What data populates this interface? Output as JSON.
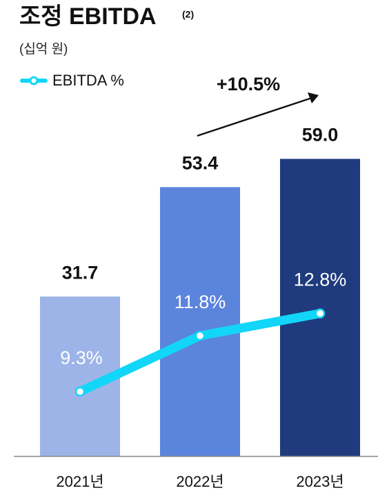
{
  "chart_data": {
    "type": "bar",
    "title": "조정 EBITDA",
    "title_note": "(2)",
    "subtitle": "(십억 원)",
    "annotation": "+10.5%",
    "categories": [
      "2021년",
      "2022년",
      "2023년"
    ],
    "series": [
      {
        "type": "bar",
        "colors": [
          "#9db4e8",
          "#5b84dc",
          "#1f3b7e"
        ],
        "values": [
          31.7,
          53.4,
          59.0
        ],
        "value_labels": [
          "31.7",
          "53.4",
          "59.0"
        ]
      },
      {
        "type": "line",
        "name": "EBITDA %",
        "color": "#12d6f7",
        "axis": "y2",
        "values": [
          9.3,
          11.8,
          12.8
        ],
        "value_labels": [
          "9.3%",
          "11.8%",
          "12.8%"
        ]
      }
    ],
    "ylim": [
      0,
      70
    ],
    "y2lim": [
      6.4,
      22.2
    ],
    "legend": "top-left"
  }
}
